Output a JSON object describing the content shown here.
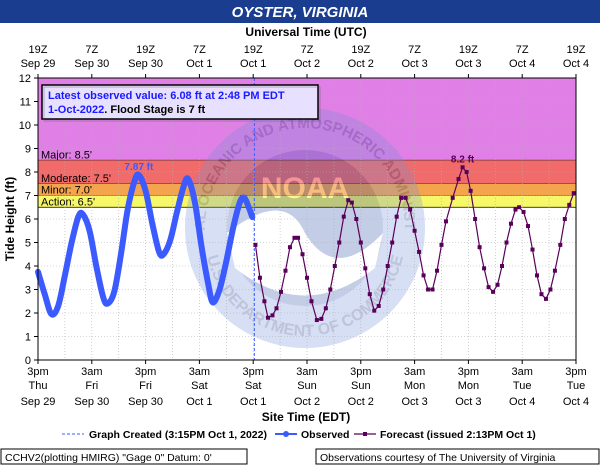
{
  "colors": {
    "title_bg": "#1a3d8f",
    "plot_bg": "#ffffff",
    "major": "#e07fe6",
    "major_to_top": "#dd8ee8",
    "moderate": "#f26b6b",
    "minor": "#f5a44e",
    "action": "#f7f76a",
    "observed": "#3b5bff",
    "forecast": "#5a005a",
    "grid": "#b0b0b0",
    "callout_bg": "#e8e0ff",
    "callout_text": "#1a1aff"
  },
  "chart_data": {
    "type": "line",
    "title": "OYSTER, VIRGINIA",
    "xlabel_top": "Universal Time (UTC)",
    "xlabel_bottom": "Site Time (EDT)",
    "ylabel": "Tide Height (ft)",
    "ylim": [
      0,
      12
    ],
    "yticks": [
      0,
      1,
      2,
      3,
      4,
      5,
      6,
      7,
      8,
      9,
      10,
      11,
      12
    ],
    "xlim_hours": [
      0,
      120
    ],
    "top_ticks": [
      {
        "t": 0,
        "l1": "19Z",
        "l2": "Sep 29"
      },
      {
        "t": 12,
        "l1": "7Z",
        "l2": "Sep 30"
      },
      {
        "t": 24,
        "l1": "19Z",
        "l2": "Sep 30"
      },
      {
        "t": 36,
        "l1": "7Z",
        "l2": "Oct 1"
      },
      {
        "t": 48,
        "l1": "19Z",
        "l2": "Oct 1"
      },
      {
        "t": 60,
        "l1": "7Z",
        "l2": "Oct 2"
      },
      {
        "t": 72,
        "l1": "19Z",
        "l2": "Oct 2"
      },
      {
        "t": 84,
        "l1": "7Z",
        "l2": "Oct 3"
      },
      {
        "t": 96,
        "l1": "19Z",
        "l2": "Oct 3"
      },
      {
        "t": 108,
        "l1": "7Z",
        "l2": "Oct 4"
      },
      {
        "t": 120,
        "l1": "19Z",
        "l2": "Oct 4"
      }
    ],
    "bottom_ticks": [
      {
        "t": 0,
        "l1": "3pm",
        "l2": "Thu",
        "l3": "Sep 29"
      },
      {
        "t": 12,
        "l1": "3am",
        "l2": "Fri",
        "l3": "Sep 30"
      },
      {
        "t": 24,
        "l1": "3pm",
        "l2": "Fri",
        "l3": "Sep 30"
      },
      {
        "t": 36,
        "l1": "3am",
        "l2": "Sat",
        "l3": "Oct 1"
      },
      {
        "t": 48,
        "l1": "3pm",
        "l2": "Sat",
        "l3": "Oct 1"
      },
      {
        "t": 60,
        "l1": "3am",
        "l2": "Sun",
        "l3": "Oct 2"
      },
      {
        "t": 72,
        "l1": "3pm",
        "l2": "Sun",
        "l3": "Oct 2"
      },
      {
        "t": 84,
        "l1": "3am",
        "l2": "Mon",
        "l3": "Oct 3"
      },
      {
        "t": 96,
        "l1": "3pm",
        "l2": "Mon",
        "l3": "Oct 3"
      },
      {
        "t": 108,
        "l1": "3am",
        "l2": "Tue",
        "l3": "Oct 4"
      },
      {
        "t": 120,
        "l1": "3pm",
        "l2": "Tue",
        "l3": "Oct 4"
      }
    ],
    "bands": [
      {
        "name": "Major",
        "label": "Major: 8.5'",
        "from": 8.5,
        "to": 12,
        "color_key": "major"
      },
      {
        "name": "Moderate",
        "label": "Moderate: 7.5'",
        "from": 7.5,
        "to": 8.5,
        "color_key": "moderate"
      },
      {
        "name": "Minor",
        "label": "Minor: 7.0'",
        "from": 7.0,
        "to": 7.5,
        "color_key": "minor"
      },
      {
        "name": "Action",
        "label": "Action: 6.5'",
        "from": 6.5,
        "to": 7.0,
        "color_key": "action"
      }
    ],
    "graph_created_hour": 48.25,
    "observed": {
      "name": "Observed",
      "points": [
        [
          0,
          3.75
        ],
        [
          1.5,
          2.8
        ],
        [
          3,
          1.95
        ],
        [
          4.5,
          2.3
        ],
        [
          6,
          3.6
        ],
        [
          7.5,
          5.0
        ],
        [
          9,
          6.1
        ],
        [
          10,
          6.2
        ],
        [
          11.5,
          5.5
        ],
        [
          13,
          4.0
        ],
        [
          14.5,
          2.7
        ],
        [
          15.5,
          2.4
        ],
        [
          17,
          2.9
        ],
        [
          18.5,
          4.5
        ],
        [
          20,
          6.4
        ],
        [
          21.5,
          7.6
        ],
        [
          22.5,
          7.87
        ],
        [
          24,
          7.2
        ],
        [
          25.5,
          5.8
        ],
        [
          27,
          4.6
        ],
        [
          28,
          4.5
        ],
        [
          29.5,
          5.1
        ],
        [
          31,
          6.3
        ],
        [
          32.5,
          7.4
        ],
        [
          33.5,
          7.7
        ],
        [
          35,
          6.7
        ],
        [
          36.5,
          4.8
        ],
        [
          38,
          3.2
        ],
        [
          39,
          2.45
        ],
        [
          40.5,
          3.0
        ],
        [
          42,
          4.2
        ],
        [
          43.5,
          5.6
        ],
        [
          45,
          6.7
        ],
        [
          46,
          6.9
        ],
        [
          47,
          6.5
        ],
        [
          47.8,
          6.08
        ]
      ],
      "peaks": [
        {
          "t": 22.5,
          "v": 7.87,
          "label": "7.87 ft"
        }
      ]
    },
    "forecast": {
      "name": "Forecast (issued 2:13PM Oct 1)",
      "points": [
        [
          48.5,
          4.9
        ],
        [
          49.5,
          3.5
        ],
        [
          50.5,
          2.5
        ],
        [
          51.3,
          1.8
        ],
        [
          52.3,
          1.9
        ],
        [
          53.2,
          2.2
        ],
        [
          54.2,
          2.9
        ],
        [
          55.2,
          3.8
        ],
        [
          56.2,
          4.8
        ],
        [
          57.2,
          5.2
        ],
        [
          58,
          5.2
        ],
        [
          59,
          4.5
        ],
        [
          60,
          3.5
        ],
        [
          61,
          2.5
        ],
        [
          62.2,
          1.7
        ],
        [
          63.2,
          1.75
        ],
        [
          64.2,
          2.2
        ],
        [
          65.2,
          3.0
        ],
        [
          66.2,
          4.0
        ],
        [
          67.2,
          5.0
        ],
        [
          68.2,
          6.1
        ],
        [
          69.2,
          6.8
        ],
        [
          70,
          6.7
        ],
        [
          71,
          6.0
        ],
        [
          72,
          5.0
        ],
        [
          73,
          3.9
        ],
        [
          74,
          2.8
        ],
        [
          75,
          2.1
        ],
        [
          76,
          2.3
        ],
        [
          77,
          3.0
        ],
        [
          78,
          4.0
        ],
        [
          79,
          5.0
        ],
        [
          80,
          6.1
        ],
        [
          81,
          6.9
        ],
        [
          82,
          6.9
        ],
        [
          83,
          6.4
        ],
        [
          84,
          5.5
        ],
        [
          85,
          4.6
        ],
        [
          86,
          3.6
        ],
        [
          87,
          3.0
        ],
        [
          88,
          3.0
        ],
        [
          89,
          3.8
        ],
        [
          90,
          4.9
        ],
        [
          91,
          5.9
        ],
        [
          92.5,
          6.9
        ],
        [
          93.8,
          7.7
        ],
        [
          94.7,
          8.2
        ],
        [
          95.6,
          8.0
        ],
        [
          96.5,
          7.2
        ],
        [
          97.5,
          6.0
        ],
        [
          98.5,
          4.8
        ],
        [
          99.5,
          3.9
        ],
        [
          100.5,
          3.1
        ],
        [
          101.5,
          2.9
        ],
        [
          102.5,
          3.2
        ],
        [
          103.5,
          4.0
        ],
        [
          104.5,
          5.0
        ],
        [
          105.5,
          5.8
        ],
        [
          106.5,
          6.4
        ],
        [
          107.3,
          6.5
        ],
        [
          108.3,
          6.3
        ],
        [
          109.3,
          5.7
        ],
        [
          110.3,
          4.7
        ],
        [
          111.3,
          3.6
        ],
        [
          112.3,
          2.8
        ],
        [
          113.3,
          2.6
        ],
        [
          114.3,
          3.0
        ],
        [
          115.3,
          3.8
        ],
        [
          116.5,
          4.9
        ],
        [
          117.5,
          6.0
        ],
        [
          118.5,
          6.6
        ],
        [
          119.5,
          7.1
        ]
      ],
      "peaks": [
        {
          "t": 94.7,
          "v": 8.2,
          "label": "8.2 ft"
        }
      ]
    },
    "callout": {
      "line1": "Latest observed value: 6.08 ft at 2:48 PM EDT",
      "line2a": "1-Oct-2022",
      "line2b": ". Flood Stage is 7 ft"
    },
    "legend": {
      "created": "Graph Created (3:15PM Oct 1, 2022)",
      "observed": "Observed",
      "forecast": "Forecast (issued 2:13PM Oct 1)"
    },
    "footer": {
      "left": "CCHV2(plotting HMIRG) \"Gage 0\" Datum: 0'",
      "right": "Observations courtesy of The University of Virginia"
    },
    "watermark": {
      "top_text": "NATIONAL OCEANIC AND ATMOSPHERIC ADMINISTRATION",
      "bottom_text": "U.S. DEPARTMENT OF COMMERCE",
      "center_text": "NOAA"
    }
  }
}
